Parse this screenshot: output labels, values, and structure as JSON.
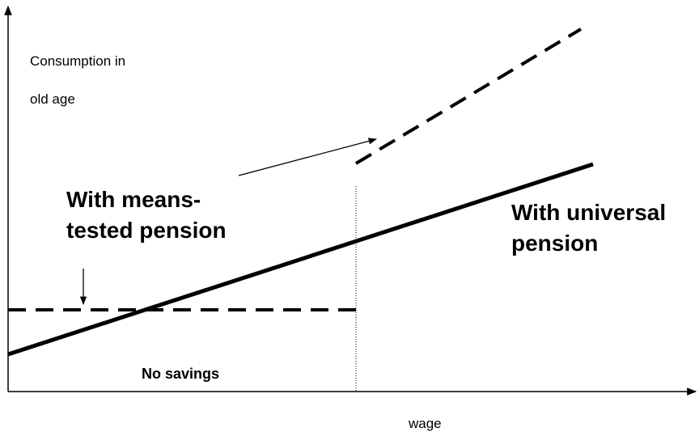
{
  "y_axis_label": [
    "Consumption in",
    "old age"
  ],
  "x_axis_label": "wage",
  "means_tested_label": [
    "With means-",
    "tested pension"
  ],
  "universal_label": [
    "With universal",
    "pension"
  ],
  "no_savings_label": "No savings"
}
